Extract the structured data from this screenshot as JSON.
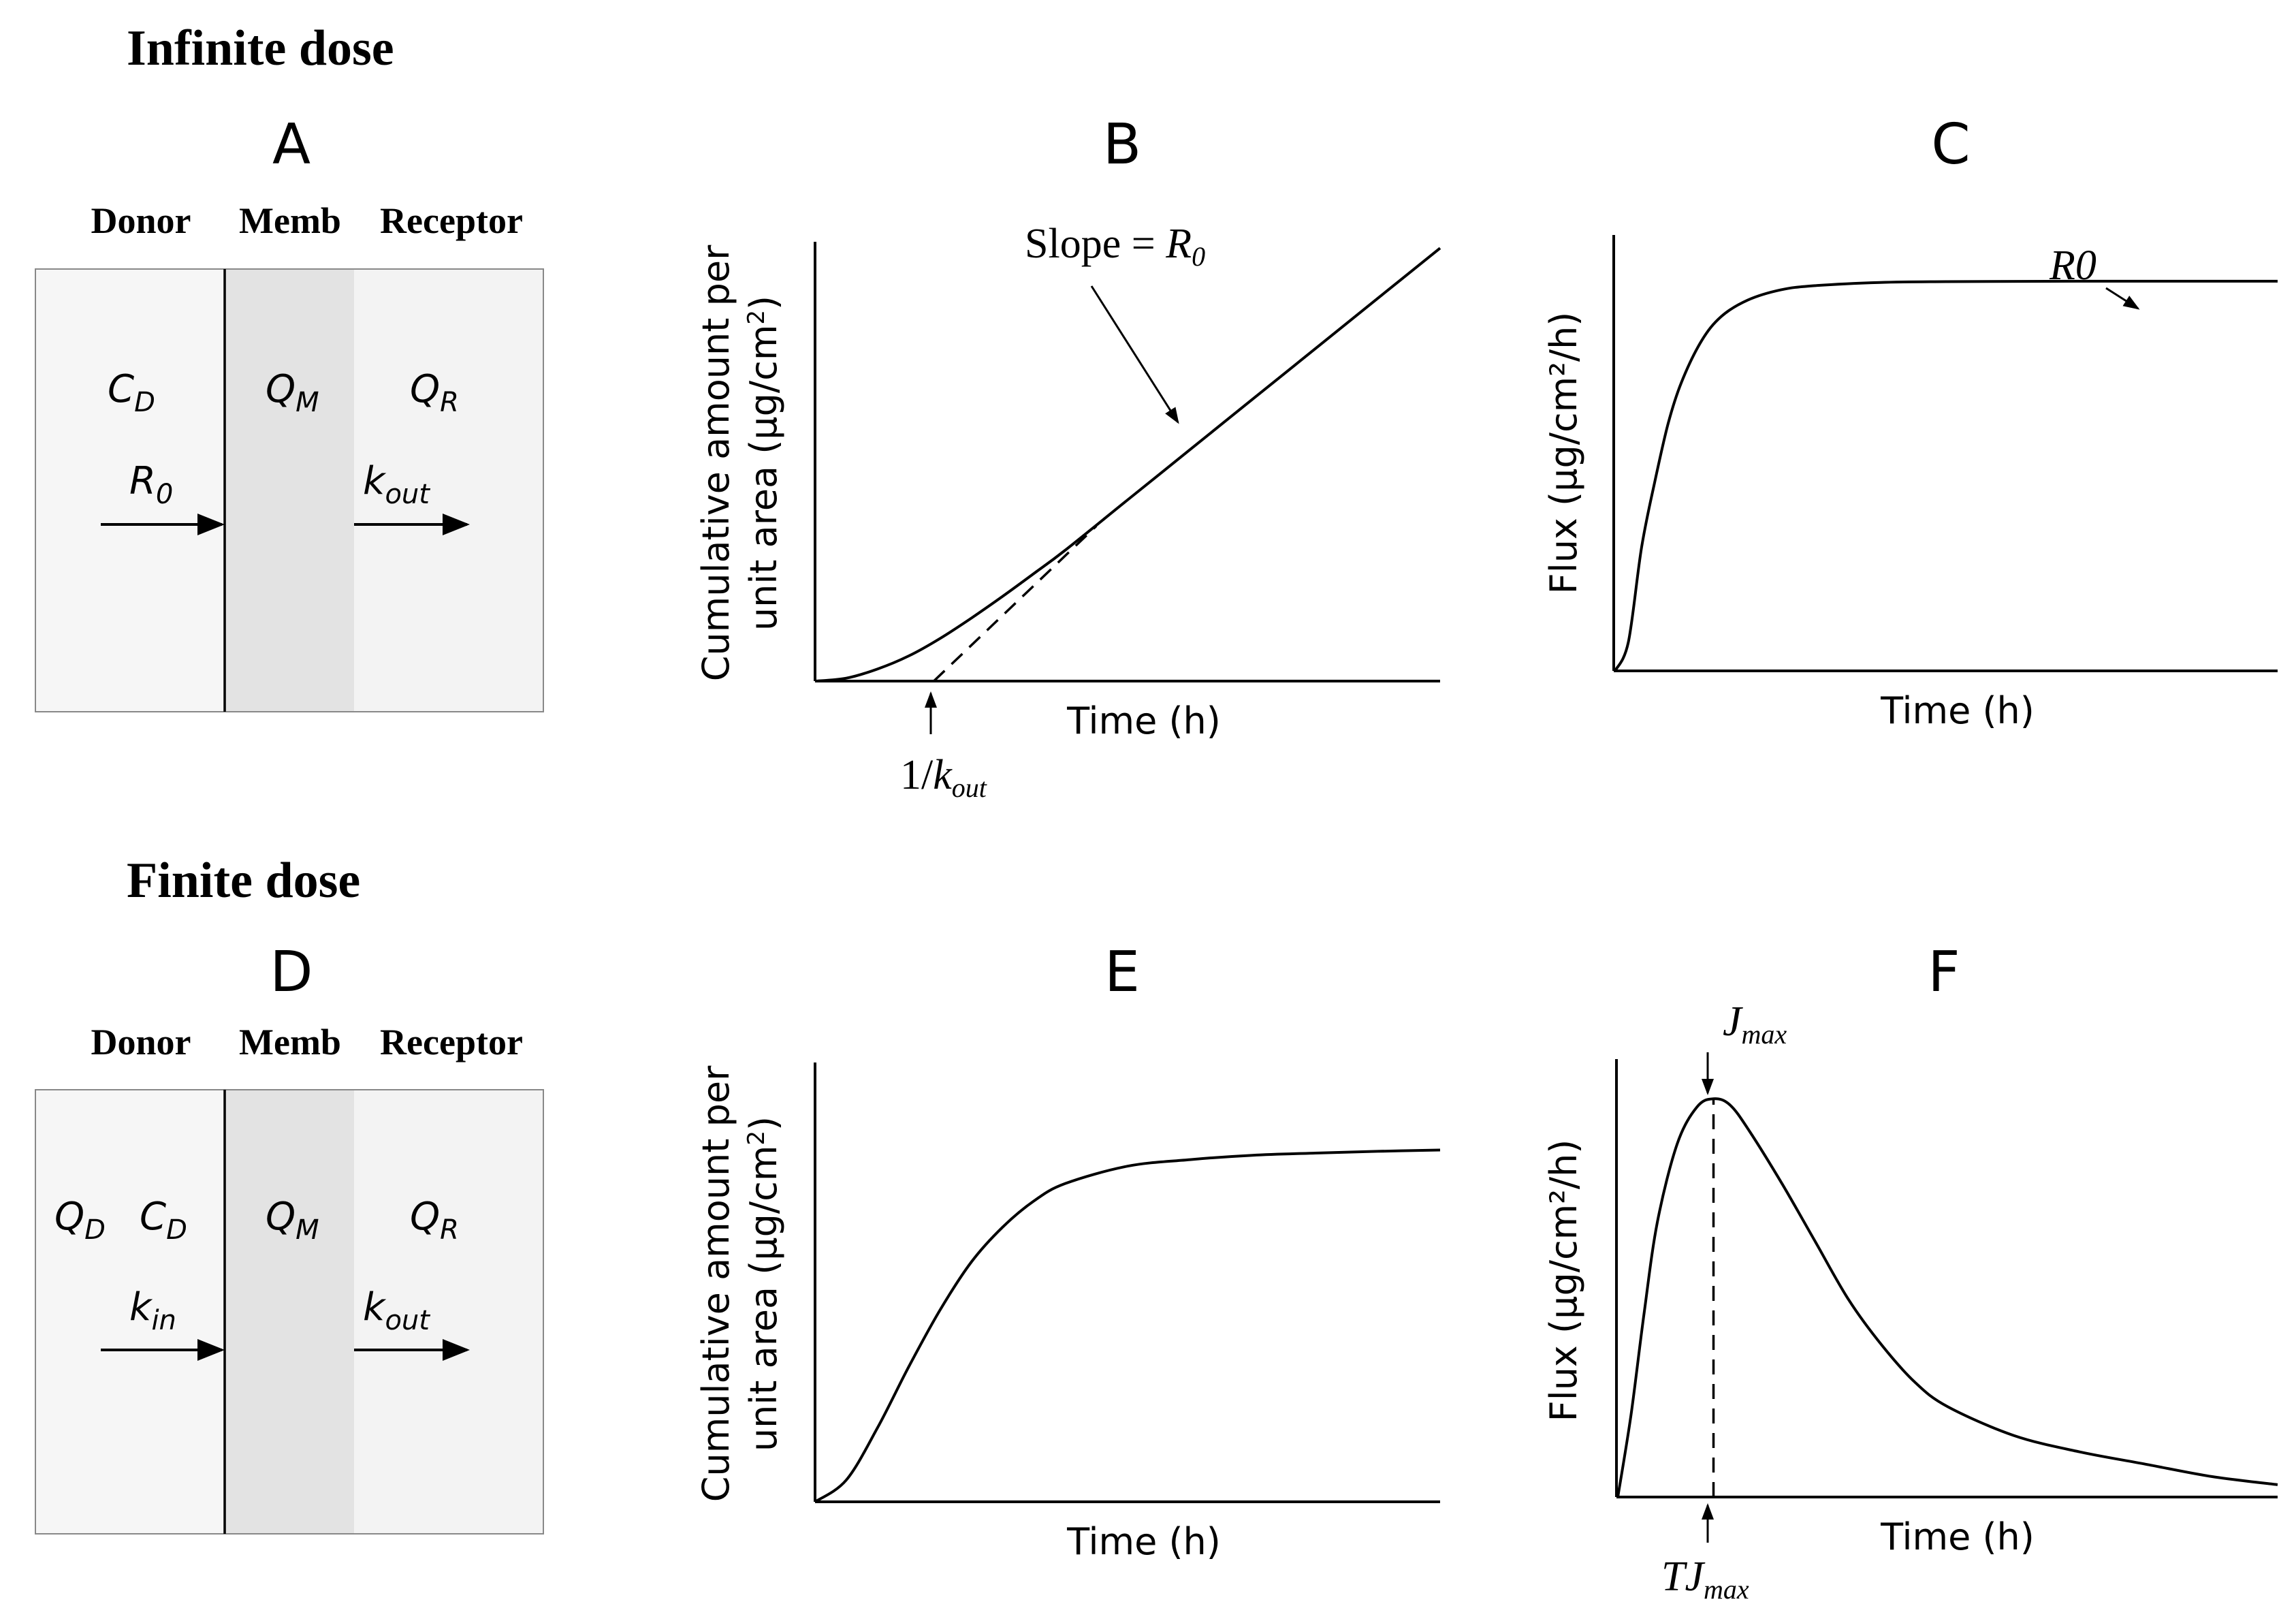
{
  "infinite": {
    "title": "Infinite dose",
    "panelA": {
      "letter": "A",
      "headers": [
        "Donor",
        "Memb",
        "Receptor"
      ],
      "symbols": {
        "donor_main": "C",
        "donor_main_sub": "D",
        "memb": "Q",
        "memb_sub": "M",
        "receptor": "Q",
        "receptor_sub": "R",
        "rate_in": "R",
        "rate_in_sub": "0",
        "rate_out": "k",
        "rate_out_sub": "out"
      }
    },
    "panelB": {
      "letter": "B",
      "ylabel_line1": "Cumulative amount per",
      "ylabel_line2": "unit area (μg/cm",
      "ylabel_sup": "2",
      "ylabel_end": ")",
      "xlabel": "Time (h)",
      "slope_text": "Slope = ",
      "slope_sym": "R",
      "slope_sub": "0",
      "lag_text": "1/",
      "lag_sym": "k",
      "lag_sub": "out"
    },
    "panelC": {
      "letter": "C",
      "ylabel": "Flux (μg/cm²/h)",
      "xlabel": "Time (h)",
      "annotation": "R0"
    }
  },
  "finite": {
    "title": "Finite dose",
    "panelD": {
      "letter": "D",
      "headers": [
        "Donor",
        "Memb",
        "Receptor"
      ],
      "symbols": {
        "donor_q": "Q",
        "donor_q_sub": "D",
        "donor_c": "C",
        "donor_c_sub": "D",
        "memb": "Q",
        "memb_sub": "M",
        "receptor": "Q",
        "receptor_sub": "R",
        "rate_in": "k",
        "rate_in_sub": "in",
        "rate_out": "k",
        "rate_out_sub": "out"
      }
    },
    "panelE": {
      "letter": "E",
      "ylabel_line1": "Cumulative amount per",
      "ylabel_line2": "unit area (μg/cm",
      "ylabel_sup": "2",
      "ylabel_end": ")",
      "xlabel": "Time (h)"
    },
    "panelF": {
      "letter": "F",
      "ylabel": "Flux (μg/cm²/h)",
      "xlabel": "Time (h)",
      "peak_sym": "J",
      "peak_sub": "max",
      "tpeak_sym": "TJ",
      "tpeak_sub": "max"
    }
  },
  "colors": {
    "donor_fill": "#f6f6f6",
    "memb_fill": "#e3e3e3",
    "receptor_fill": "#f3f3f3",
    "border": "#000000"
  },
  "chart_data": [
    {
      "panel": "B",
      "type": "line",
      "title": "B",
      "xlabel": "Time (h)",
      "ylabel": "Cumulative amount per unit area (μg/cm2)",
      "x": [
        0,
        0.05,
        0.1,
        0.15,
        0.2,
        0.25,
        0.3,
        0.35,
        0.4,
        0.5,
        0.6,
        0.7,
        0.8,
        0.9,
        1.0
      ],
      "series": [
        {
          "name": "cumulative",
          "values": [
            0,
            0.006,
            0.025,
            0.052,
            0.088,
            0.13,
            0.175,
            0.222,
            0.27,
            0.374,
            0.478,
            0.582,
            0.686,
            0.79,
            0.894
          ]
        },
        {
          "name": "steady-state asymptote (dashed)",
          "x": [
            0.19,
            0.45
          ],
          "values": [
            0,
            0.32
          ]
        }
      ],
      "xlim": [
        0,
        1.0
      ],
      "ylim": [
        0,
        0.9
      ],
      "ticks": false,
      "grid": false
    },
    {
      "panel": "C",
      "type": "line",
      "title": "C",
      "xlabel": "Time (h)",
      "ylabel": "Flux (μg/cm²/h)",
      "x": [
        0,
        0.02,
        0.04,
        0.06,
        0.08,
        0.1,
        0.13,
        0.16,
        0.2,
        0.25,
        0.3,
        0.4,
        0.5,
        0.7,
        1.0
      ],
      "series": [
        {
          "name": "flux",
          "values": [
            0,
            0.07,
            0.3,
            0.46,
            0.6,
            0.7,
            0.8,
            0.86,
            0.9,
            0.925,
            0.935,
            0.943,
            0.945,
            0.946,
            0.946
          ]
        }
      ],
      "xlim": [
        0,
        1.0
      ],
      "ylim": [
        0,
        1.05
      ],
      "ticks": false,
      "grid": false
    },
    {
      "panel": "E",
      "type": "line",
      "title": "E",
      "xlabel": "Time (h)",
      "ylabel": "Cumulative amount per unit area (μg/cm2)",
      "x": [
        0,
        0.05,
        0.1,
        0.15,
        0.2,
        0.25,
        0.3,
        0.35,
        0.4,
        0.5,
        0.6,
        0.7,
        0.8,
        0.9,
        1.0
      ],
      "series": [
        {
          "name": "cumulative",
          "values": [
            0,
            0.05,
            0.17,
            0.31,
            0.44,
            0.55,
            0.63,
            0.69,
            0.73,
            0.77,
            0.785,
            0.795,
            0.8,
            0.804,
            0.807
          ]
        }
      ],
      "xlim": [
        0,
        1.0
      ],
      "ylim": [
        0,
        1.0
      ],
      "ticks": false,
      "grid": false
    },
    {
      "panel": "F",
      "type": "line",
      "title": "F",
      "xlabel": "Time (h)",
      "ylabel": "Flux (μg/cm²/h)",
      "x": [
        0,
        0.02,
        0.04,
        0.06,
        0.09,
        0.12,
        0.145,
        0.17,
        0.2,
        0.25,
        0.3,
        0.35,
        0.4,
        0.45,
        0.5,
        0.6,
        0.7,
        0.8,
        0.9,
        1.0
      ],
      "series": [
        {
          "name": "flux",
          "values": [
            0,
            0.2,
            0.45,
            0.67,
            0.86,
            0.95,
            0.97,
            0.955,
            0.89,
            0.76,
            0.62,
            0.48,
            0.37,
            0.28,
            0.22,
            0.15,
            0.11,
            0.08,
            0.05,
            0.03
          ]
        },
        {
          "name": "Tmax marker (dashed)",
          "x": [
            0.145,
            0.145
          ],
          "values": [
            0,
            0.97
          ]
        }
      ],
      "xlim": [
        0,
        1.0
      ],
      "ylim": [
        0,
        1.05
      ],
      "ticks": false,
      "grid": false
    }
  ]
}
